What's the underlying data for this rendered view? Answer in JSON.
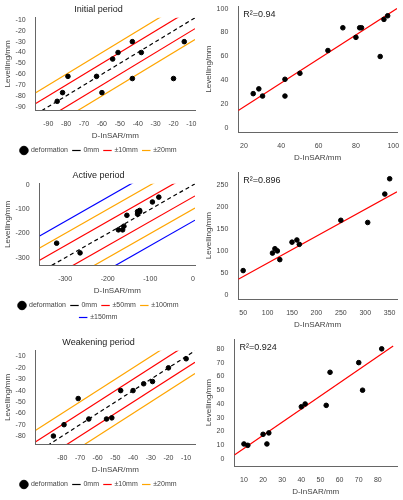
{
  "chart_data": [
    {
      "type": "scatter",
      "title": "Initial period",
      "xlabel": "D-InSAR/mm",
      "ylabel": "Levelling/mm",
      "xlim": [
        -97,
        -8
      ],
      "ylim": [
        -93,
        -8
      ],
      "xticks": [
        -90,
        -80,
        -70,
        -60,
        -50,
        -40,
        -30,
        -20,
        -10
      ],
      "yticks": [
        -90,
        -80,
        -70,
        -60,
        -50,
        -40,
        -30,
        -20,
        -10
      ],
      "grid": false,
      "legend": "bottom",
      "series": [
        {
          "name": "deformation",
          "type": "scatter",
          "color": "black",
          "marker": "circle",
          "x": [
            -85,
            -82,
            -79,
            -63,
            -60,
            -54,
            -51,
            -43,
            -43,
            -38,
            -20,
            -14
          ],
          "values": [
            -85,
            -77,
            -62,
            -62,
            -77,
            -46,
            -40,
            -30,
            -64,
            -40,
            -64,
            -30
          ]
        },
        {
          "name": "0mm",
          "type": "line",
          "color": "black",
          "line_style": "dashed",
          "offsets": [
            0
          ]
        },
        {
          "name": "±10mm",
          "type": "line",
          "color": "red",
          "line_style": "solid",
          "offsets": [
            10,
            -10
          ]
        },
        {
          "name": "±20mm",
          "type": "line",
          "color": "orange",
          "line_style": "solid",
          "offsets": [
            20,
            -20
          ]
        }
      ]
    },
    {
      "type": "scatter",
      "xlabel": "D-InSAR/mm",
      "ylabel": "Levelling/mm",
      "xlim": [
        17,
        102
      ],
      "ylim": [
        -3,
        102
      ],
      "xticks": [
        20,
        40,
        60,
        80,
        100
      ],
      "yticks": [
        0,
        20,
        40,
        60,
        80,
        100
      ],
      "grid": false,
      "annotation": "R²=0.94",
      "series": [
        {
          "type": "scatter",
          "color": "black",
          "marker": "circle",
          "x": [
            25,
            28,
            30,
            42,
            42,
            50,
            65,
            73,
            80,
            82,
            83,
            93,
            95,
            97
          ],
          "values": [
            29,
            33,
            27,
            41,
            27,
            46,
            65,
            84,
            76,
            84,
            84,
            60,
            91,
            94
          ]
        },
        {
          "type": "line",
          "color": "red",
          "line_style": "solid",
          "x": [
            17,
            102
          ],
          "values": [
            15,
            100
          ]
        }
      ]
    },
    {
      "type": "scatter",
      "title": "Active period",
      "xlabel": "D-InSAR/mm",
      "ylabel": "Levelling/mm",
      "xlim": [
        -360,
        5
      ],
      "ylim": [
        -330,
        5
      ],
      "xticks": [
        -300,
        -200,
        -100,
        0
      ],
      "yticks": [
        -300,
        -200,
        -100,
        0
      ],
      "grid": false,
      "legend": "bottom",
      "series": [
        {
          "name": "deformation",
          "type": "scatter",
          "color": "black",
          "marker": "circle",
          "x": [
            -320,
            -265,
            -175,
            -165,
            -162,
            -155,
            -130,
            -130,
            -125,
            -125,
            -95,
            -80
          ],
          "values": [
            -240,
            -280,
            -185,
            -185,
            -170,
            -125,
            -120,
            -110,
            -110,
            -105,
            -70,
            -50
          ]
        },
        {
          "name": "0mm",
          "type": "line",
          "color": "black",
          "line_style": "dashed",
          "offsets": [
            0
          ]
        },
        {
          "name": "±50mm",
          "type": "line",
          "color": "red",
          "line_style": "solid",
          "offsets": [
            50,
            -50
          ]
        },
        {
          "name": "±100mm",
          "type": "line",
          "color": "orange",
          "line_style": "solid",
          "offsets": [
            100,
            -100
          ]
        },
        {
          "name": "±150mm",
          "type": "line",
          "color": "blue",
          "line_style": "solid",
          "offsets": [
            150,
            -150
          ]
        }
      ]
    },
    {
      "type": "scatter",
      "xlabel": "D-InSAR/mm",
      "ylabel": "Levelling/mm",
      "xlim": [
        40,
        365
      ],
      "ylim": [
        -10,
        280
      ],
      "xticks": [
        50,
        100,
        150,
        200,
        250,
        300,
        350
      ],
      "yticks": [
        0,
        50,
        100,
        150,
        200,
        250
      ],
      "grid": false,
      "annotation": "R²=0.896",
      "series": [
        {
          "type": "scatter",
          "color": "black",
          "marker": "circle",
          "x": [
            50,
            110,
            115,
            120,
            125,
            150,
            160,
            165,
            250,
            305,
            340,
            350
          ],
          "values": [
            55,
            95,
            105,
            100,
            80,
            120,
            125,
            115,
            170,
            165,
            230,
            265
          ]
        },
        {
          "type": "line",
          "color": "red",
          "line_style": "solid",
          "x": [
            40,
            365
          ],
          "values": [
            35,
            235
          ]
        }
      ]
    },
    {
      "type": "scatter",
      "title": "Weakening period",
      "xlabel": "D-InSAR/mm",
      "ylabel": "Levelling/mm",
      "xlim": [
        -95,
        -5
      ],
      "ylim": [
        -87,
        -5
      ],
      "xticks": [
        -80,
        -70,
        -60,
        -50,
        -40,
        -30,
        -20,
        -10
      ],
      "yticks": [
        -80,
        -70,
        -60,
        -50,
        -40,
        -30,
        -20,
        -10
      ],
      "grid": false,
      "legend": "bottom",
      "series": [
        {
          "name": "deformation",
          "type": "scatter",
          "color": "black",
          "marker": "circle",
          "x": [
            -85,
            -79,
            -71,
            -65,
            -55,
            -52,
            -47,
            -40,
            -34,
            -29,
            -20,
            -10
          ],
          "values": [
            -80,
            -70,
            -47,
            -65,
            -65,
            -64,
            -40,
            -40,
            -34,
            -32,
            -20,
            -12
          ]
        },
        {
          "name": "0mm",
          "type": "line",
          "color": "black",
          "line_style": "dashed",
          "offsets": [
            0
          ]
        },
        {
          "name": "±10mm",
          "type": "line",
          "color": "red",
          "line_style": "solid",
          "offsets": [
            10,
            -10
          ]
        },
        {
          "name": "±20mm",
          "type": "line",
          "color": "orange",
          "line_style": "solid",
          "offsets": [
            20,
            -20
          ]
        }
      ]
    },
    {
      "type": "scatter",
      "xlabel": "D-InSAR/mm",
      "ylabel": "Levelling/mm",
      "xlim": [
        5,
        90
      ],
      "ylim": [
        -5,
        87
      ],
      "xticks": [
        10,
        20,
        30,
        40,
        50,
        60,
        70,
        80
      ],
      "yticks": [
        0,
        10,
        20,
        30,
        40,
        50,
        60,
        70,
        80
      ],
      "grid": false,
      "annotation": "R²=0.924",
      "series": [
        {
          "type": "scatter",
          "color": "black",
          "marker": "circle",
          "x": [
            10,
            12,
            20,
            22,
            23,
            40,
            42,
            53,
            55,
            70,
            72,
            82
          ],
          "values": [
            11,
            10,
            18,
            11,
            19,
            38,
            40,
            39,
            63,
            70,
            50,
            80
          ]
        },
        {
          "type": "line",
          "color": "red",
          "line_style": "solid",
          "x": [
            5,
            88
          ],
          "values": [
            3,
            82
          ]
        }
      ]
    }
  ]
}
